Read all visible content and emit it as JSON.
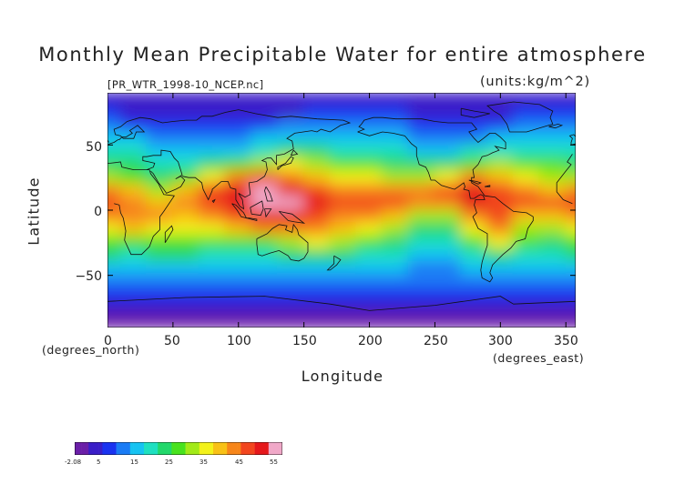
{
  "title": "Monthly Mean Precipitable Water for entire atmosphere",
  "file_label": "[PR_WTR_1998-10_NCEP.nc]",
  "units_label": "(units:kg/m^2)",
  "axes": {
    "xlabel": "Longitude",
    "ylabel": "Latitude",
    "x_units": "(degrees_east)",
    "y_units": "(degrees_north)",
    "x_range": [
      0,
      357.5
    ],
    "y_range": [
      -90,
      90
    ],
    "x_ticks": [
      "0",
      "50",
      "100",
      "150",
      "200",
      "250",
      "300",
      "350"
    ],
    "y_ticks": [
      "50",
      "0",
      "−50"
    ]
  },
  "colorbar": {
    "tick_labels": [
      "-2.08",
      "5",
      "15",
      "25",
      "35",
      "45",
      "55"
    ],
    "range": [
      -2.08,
      57
    ],
    "palette": [
      "#6b1fa8",
      "#3a1ec8",
      "#1a33f0",
      "#1a7cf5",
      "#16c3f2",
      "#1ee0c0",
      "#22d86b",
      "#48e21e",
      "#a2ea18",
      "#f3f21a",
      "#f8c116",
      "#f7861a",
      "#f2461f",
      "#e5181c",
      "#f0a8c8"
    ]
  },
  "chart_data": {
    "type": "heatmap",
    "title": "Monthly Mean Precipitable Water for entire atmosphere",
    "xlabel": "Longitude",
    "ylabel": "Latitude",
    "xlim": [
      0,
      357.5
    ],
    "ylim": [
      -90,
      90
    ],
    "zlim": [
      -2.08,
      57
    ],
    "x_units": "degrees_east",
    "y_units": "degrees_north",
    "z_units": "kg/m^2",
    "colorbar_ticks": [
      -2.08,
      5,
      15,
      25,
      35,
      45,
      55
    ],
    "latitudes": [
      85,
      75,
      65,
      55,
      45,
      35,
      25,
      15,
      5,
      -5,
      -15,
      -25,
      -35,
      -45,
      -55,
      -65,
      -75,
      -85
    ],
    "longitudes": [
      0,
      20,
      40,
      60,
      80,
      100,
      120,
      140,
      160,
      180,
      200,
      220,
      240,
      260,
      280,
      300,
      320,
      340
    ],
    "values": [
      [
        3,
        2,
        2,
        2,
        2,
        2,
        2,
        2,
        3,
        3,
        3,
        3,
        3,
        2,
        2,
        2,
        3,
        3
      ],
      [
        6,
        5,
        5,
        5,
        4,
        4,
        4,
        5,
        6,
        7,
        7,
        6,
        5,
        4,
        4,
        5,
        6,
        6
      ],
      [
        10,
        9,
        9,
        8,
        7,
        7,
        8,
        10,
        11,
        12,
        12,
        11,
        9,
        8,
        8,
        9,
        10,
        10
      ],
      [
        15,
        14,
        13,
        12,
        11,
        12,
        14,
        16,
        17,
        17,
        16,
        14,
        13,
        12,
        13,
        15,
        16,
        15
      ],
      [
        19,
        18,
        17,
        15,
        14,
        16,
        19,
        22,
        22,
        21,
        20,
        18,
        16,
        16,
        18,
        21,
        21,
        20
      ],
      [
        24,
        23,
        20,
        18,
        22,
        28,
        33,
        34,
        30,
        27,
        26,
        24,
        22,
        23,
        26,
        30,
        29,
        26
      ],
      [
        30,
        28,
        24,
        28,
        36,
        44,
        47,
        45,
        40,
        36,
        34,
        32,
        30,
        36,
        42,
        40,
        36,
        32
      ],
      [
        42,
        38,
        32,
        38,
        48,
        53,
        55,
        52,
        48,
        45,
        44,
        43,
        45,
        48,
        52,
        48,
        44,
        40
      ],
      [
        48,
        44,
        40,
        42,
        46,
        52,
        56,
        54,
        50,
        48,
        47,
        46,
        44,
        45,
        50,
        48,
        46,
        46
      ],
      [
        44,
        44,
        42,
        40,
        42,
        48,
        52,
        52,
        48,
        45,
        42,
        38,
        32,
        30,
        44,
        48,
        40,
        38
      ],
      [
        36,
        38,
        36,
        34,
        36,
        38,
        42,
        42,
        42,
        40,
        36,
        30,
        24,
        22,
        36,
        42,
        32,
        30
      ],
      [
        28,
        26,
        26,
        28,
        28,
        26,
        28,
        32,
        34,
        32,
        28,
        24,
        20,
        18,
        28,
        34,
        26,
        24
      ],
      [
        22,
        20,
        22,
        22,
        20,
        18,
        20,
        24,
        24,
        22,
        20,
        18,
        16,
        16,
        20,
        24,
        20,
        20
      ],
      [
        16,
        16,
        16,
        15,
        14,
        14,
        15,
        16,
        16,
        16,
        15,
        14,
        13,
        13,
        15,
        16,
        15,
        16
      ],
      [
        11,
        11,
        11,
        10,
        10,
        10,
        10,
        11,
        11,
        11,
        10,
        10,
        10,
        10,
        10,
        11,
        11,
        11
      ],
      [
        7,
        7,
        7,
        6,
        6,
        6,
        6,
        7,
        7,
        7,
        6,
        6,
        6,
        6,
        6,
        7,
        7,
        7
      ],
      [
        3,
        3,
        3,
        3,
        3,
        3,
        3,
        3,
        3,
        3,
        3,
        3,
        3,
        3,
        3,
        3,
        3,
        3
      ],
      [
        1,
        1,
        1,
        1,
        1,
        1,
        1,
        1,
        1,
        1,
        1,
        1,
        1,
        1,
        1,
        1,
        1,
        1
      ]
    ]
  }
}
